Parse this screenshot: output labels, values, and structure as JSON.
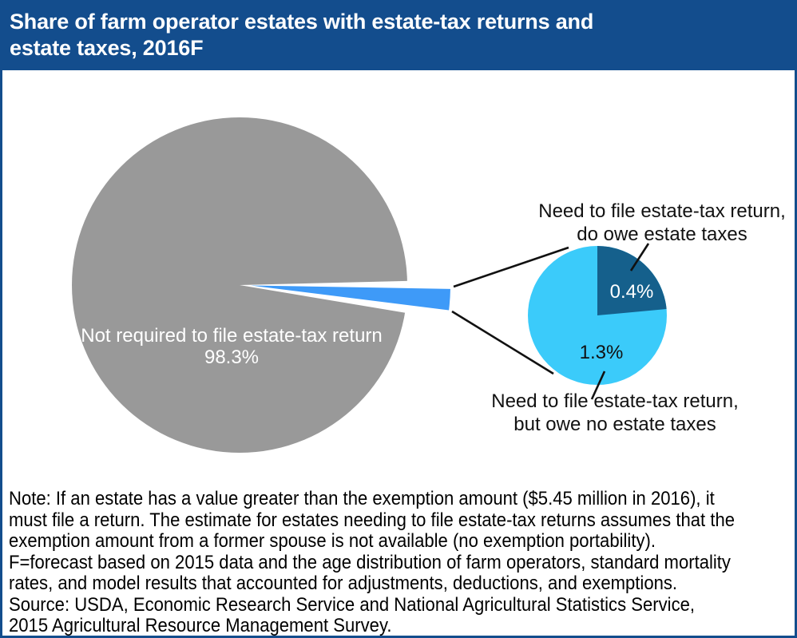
{
  "header": {
    "title": "Share of farm operator estates with estate-tax returns and\nestate taxes, 2016F"
  },
  "chart_data": {
    "type": "pie",
    "title": "Share of farm operator estates with estate-tax returns and estate taxes, 2016F",
    "unit": "percent",
    "grid": false,
    "legend_position": "labels-on-chart",
    "main_pie": {
      "slices": [
        {
          "label": "Not required to file estate-tax return",
          "value": 98.3,
          "color": "#999999"
        },
        {
          "label": "Need to file estate-tax return (shown magnified in detail pie)",
          "value": 1.7,
          "color": "#3e9af8"
        }
      ]
    },
    "zoom_pie": {
      "description": "Magnified view of the 1.7% sliver",
      "slices": [
        {
          "label": "Need to file estate-tax return, but owe no estate taxes",
          "value": 1.3,
          "color": "#3bcbfa"
        },
        {
          "label": "Need to file estate-tax return, do owe estate taxes",
          "value": 0.4,
          "color": "#15608c"
        }
      ]
    }
  },
  "labels": {
    "main_slice": "Not required to file estate-tax return\n98.3%",
    "zoom_dark_value": "0.4%",
    "zoom_light_value": "1.3%",
    "zoom_dark_callout": "Need to file estate-tax return,\ndo owe estate taxes",
    "zoom_light_callout": "Need to file estate-tax return,\nbut owe no estate taxes"
  },
  "footer": {
    "note": "Note: If an estate has a value greater than the exemption amount ($5.45 million in 2016), it\nmust file a return. The estimate for estates needing to file estate-tax returns assumes that the\nexemption amount from a former spouse is not available (no exemption portability).\nF=forecast based on 2015 data and the age distribution of farm operators, standard mortality\nrates, and model results that accounted for adjustments, deductions, and exemptions.\nSource: USDA, Economic Research Service and National Agricultural Statistics Service,\n2015 Agricultural Resource Management Survey."
  },
  "colors": {
    "header_bg": "#134d8d",
    "border": "#134d8d",
    "main_slice_gray": "#999999",
    "sliver_blue": "#3e9af8",
    "zoom_light_blue": "#3bcbfa",
    "zoom_dark_blue": "#15608c",
    "connector_line": "#111111"
  }
}
